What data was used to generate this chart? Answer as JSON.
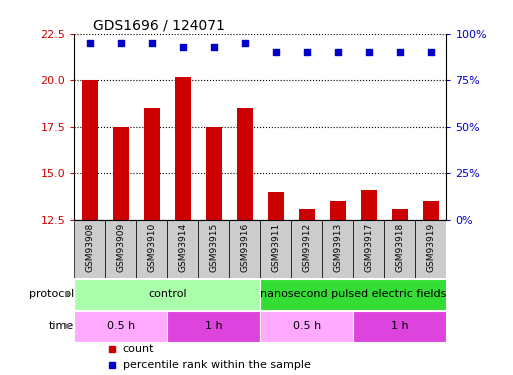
{
  "title": "GDS1696 / 124071",
  "samples": [
    "GSM93908",
    "GSM93909",
    "GSM93910",
    "GSM93914",
    "GSM93915",
    "GSM93916",
    "GSM93911",
    "GSM93912",
    "GSM93913",
    "GSM93917",
    "GSM93918",
    "GSM93919"
  ],
  "count_values": [
    20.0,
    17.5,
    18.5,
    20.2,
    17.5,
    18.5,
    14.0,
    13.1,
    13.5,
    14.1,
    13.1,
    13.5
  ],
  "percentile_values": [
    95,
    95,
    95,
    93,
    93,
    95,
    90,
    90,
    90,
    90,
    90,
    90
  ],
  "ylim_left": [
    12.5,
    22.5
  ],
  "ylim_right": [
    0,
    100
  ],
  "yticks_left": [
    12.5,
    15.0,
    17.5,
    20.0,
    22.5
  ],
  "yticks_right": [
    0,
    25,
    50,
    75,
    100
  ],
  "bar_color": "#cc0000",
  "dot_color": "#0000cc",
  "sample_box_color": "#cccccc",
  "protocol_groups": [
    {
      "label": "control",
      "start": 0,
      "end": 6,
      "color": "#aaffaa"
    },
    {
      "label": "nanosecond pulsed electric fields",
      "start": 6,
      "end": 12,
      "color": "#33dd33"
    }
  ],
  "time_groups": [
    {
      "label": "0.5 h",
      "start": 0,
      "end": 3,
      "color": "#ffaaff"
    },
    {
      "label": "1 h",
      "start": 3,
      "end": 6,
      "color": "#dd44dd"
    },
    {
      "label": "0.5 h",
      "start": 6,
      "end": 9,
      "color": "#ffaaff"
    },
    {
      "label": "1 h",
      "start": 9,
      "end": 12,
      "color": "#dd44dd"
    }
  ],
  "legend_count_label": "count",
  "legend_percentile_label": "percentile rank within the sample",
  "xlabel_protocol": "protocol",
  "xlabel_time": "time",
  "background_color": "#ffffff",
  "bar_width": 0.5
}
